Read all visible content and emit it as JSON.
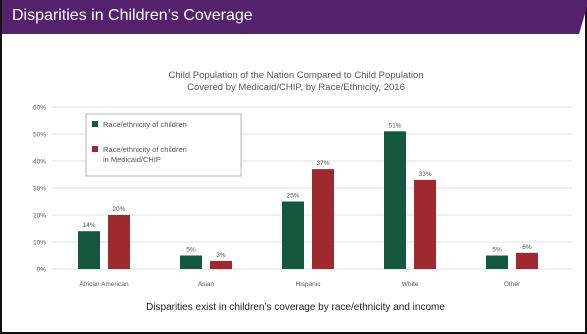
{
  "slide": {
    "title": "Disparities in Children’s Coverage",
    "caption": "Disparities exist in children’s coverage by race/ethnicity and income"
  },
  "colors": {
    "banner": "#54226d",
    "series_children": "#16573f",
    "series_medicaid": "#9e2a2f",
    "text": "#595959",
    "grid": "#d9d9d9"
  },
  "chart_data": {
    "type": "bar",
    "title": "Child Population of the Nation Compared to Child Population\nCovered by Medicaid/CHIP, by Race/Ethnicity, 2016",
    "categories": [
      "African American",
      "Asian",
      "Hispanic",
      "White",
      "Other"
    ],
    "series": [
      {
        "name": "Race/ethnicity of children",
        "values": [
          14,
          5,
          25,
          51,
          5
        ],
        "labels": [
          "14%",
          "5%",
          "25%",
          "51%",
          "5%"
        ]
      },
      {
        "name": "Race/ethnicity of children in Medicaid/CHIP",
        "values": [
          20,
          3,
          37,
          33,
          6
        ],
        "labels": [
          "20%",
          "3%",
          "37%",
          "33%",
          "6%"
        ]
      }
    ],
    "ylim": [
      0,
      60
    ],
    "yticks": [
      "0%",
      "10%",
      "20%",
      "30%",
      "40%",
      "50%",
      "60%"
    ],
    "grid": true,
    "legend_position": "top-left"
  }
}
